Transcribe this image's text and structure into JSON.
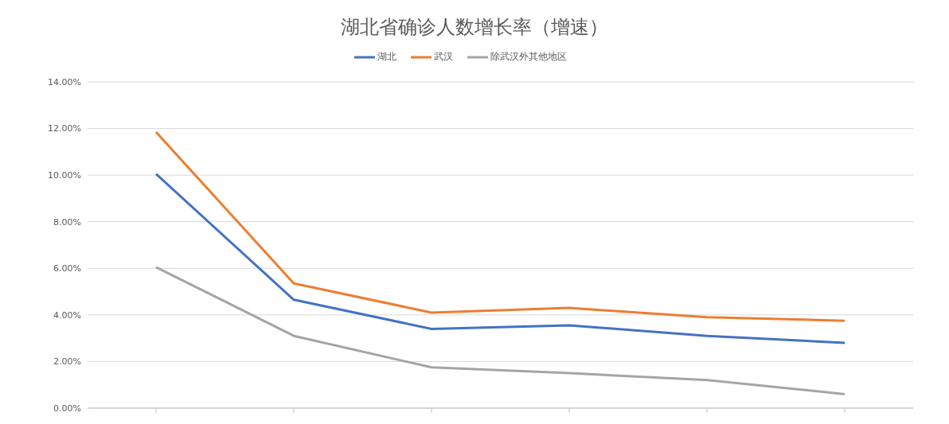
{
  "chart_data": {
    "type": "line",
    "title": "湖北省确诊人数增长率（增速）",
    "categories": [
      null,
      null,
      null,
      null,
      null,
      null
    ],
    "series": [
      {
        "name": "湖北",
        "color": "#4472c4",
        "values": [
          10.05,
          4.65,
          3.4,
          3.55,
          3.1,
          2.8
        ]
      },
      {
        "name": "武汉",
        "color": "#ed7d31",
        "values": [
          11.85,
          5.35,
          4.1,
          4.3,
          3.9,
          3.75
        ]
      },
      {
        "name": "除武汉外其他地区",
        "color": "#a5a5a5",
        "values": [
          6.05,
          3.1,
          1.75,
          1.5,
          1.2,
          0.6
        ]
      }
    ],
    "ylim": [
      0,
      14
    ],
    "yticks": [
      {
        "value": 0,
        "label": "0.00%"
      },
      {
        "value": 2,
        "label": "2.00%"
      },
      {
        "value": 4,
        "label": "4.00%"
      },
      {
        "value": 6,
        "label": "6.00%"
      },
      {
        "value": 8,
        "label": "8.00%"
      },
      {
        "value": 10,
        "label": "10.00%"
      },
      {
        "value": 12,
        "label": "12.00%"
      },
      {
        "value": 14,
        "label": "14.00%"
      }
    ],
    "grid": "y",
    "legend": "top",
    "marker": "none",
    "line_style": "solid"
  }
}
